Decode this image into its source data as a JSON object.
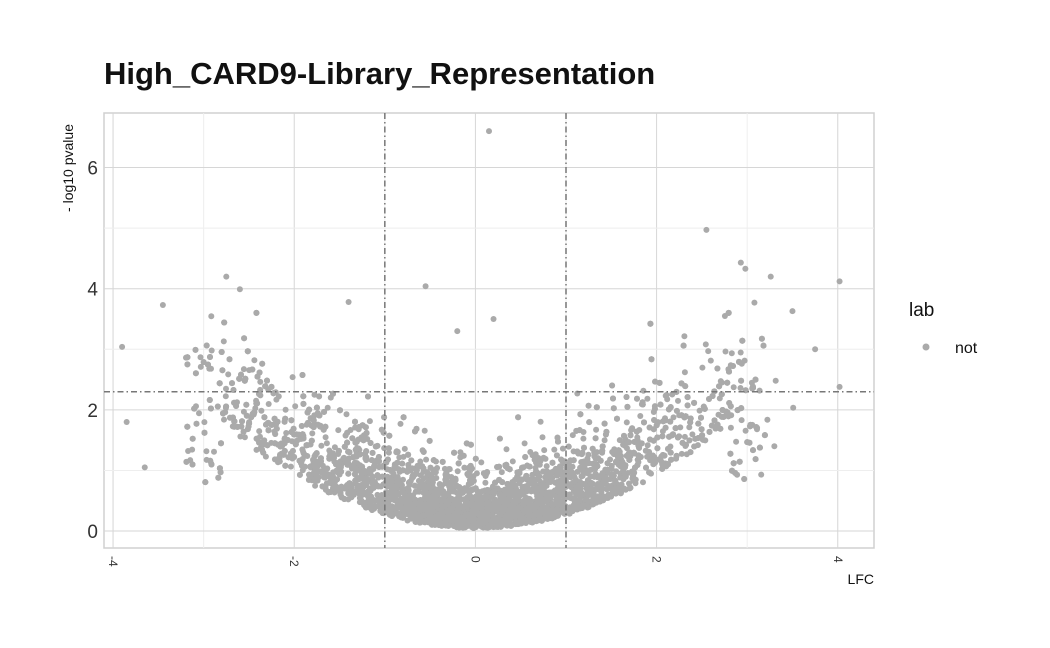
{
  "chart_data": {
    "type": "scatter",
    "title": "High_CARD9-Library_Representation",
    "xlabel": "LFC",
    "ylabel": "- log10 pvalue",
    "xlim": [
      -4.1,
      4.4
    ],
    "ylim": [
      -0.28,
      6.9
    ],
    "x_ticks": [
      -4,
      -2,
      0,
      2,
      4
    ],
    "y_ticks": [
      0,
      2,
      4,
      6
    ],
    "x_tick_labels": [
      "-4",
      "-2",
      "0",
      "2",
      "4"
    ],
    "y_tick_labels": [
      "0",
      "2",
      "4",
      "6"
    ],
    "grid": true,
    "thresholds": {
      "lfc_low": -1,
      "lfc_high": 1,
      "pvalue_line": 2.3
    },
    "legend": {
      "title": "lab",
      "position": "right",
      "entries": [
        {
          "label": "not",
          "color": "#aaaaaa"
        }
      ]
    },
    "series": [
      {
        "name": "not",
        "color": "#aaaaaa",
        "notable_points": [
          {
            "x": 0.15,
            "y": 6.6
          },
          {
            "x": 2.55,
            "y": 4.97
          },
          {
            "x": 4.02,
            "y": 4.12
          },
          {
            "x": 2.93,
            "y": 4.43
          },
          {
            "x": 2.98,
            "y": 4.33
          },
          {
            "x": 3.26,
            "y": 4.2
          },
          {
            "x": -2.75,
            "y": 4.2
          },
          {
            "x": -2.6,
            "y": 3.99
          },
          {
            "x": -0.55,
            "y": 4.04
          },
          {
            "x": -3.45,
            "y": 3.73
          },
          {
            "x": -1.4,
            "y": 3.78
          },
          {
            "x": 3.08,
            "y": 3.77
          },
          {
            "x": 3.5,
            "y": 3.63
          },
          {
            "x": 3.75,
            "y": 3.0
          },
          {
            "x": -3.85,
            "y": 1.8
          },
          {
            "x": -3.65,
            "y": 1.05
          },
          {
            "x": 0.2,
            "y": 3.5
          },
          {
            "x": -0.2,
            "y": 3.3
          },
          {
            "x": 3.3,
            "y": 1.4
          },
          {
            "x": 4.02,
            "y": 2.38
          }
        ],
        "bulk_description": "thousands of points forming a V-shaped volcano centered at LFC 0, -log10 pvalue mostly 0 to 2.5"
      }
    ]
  }
}
